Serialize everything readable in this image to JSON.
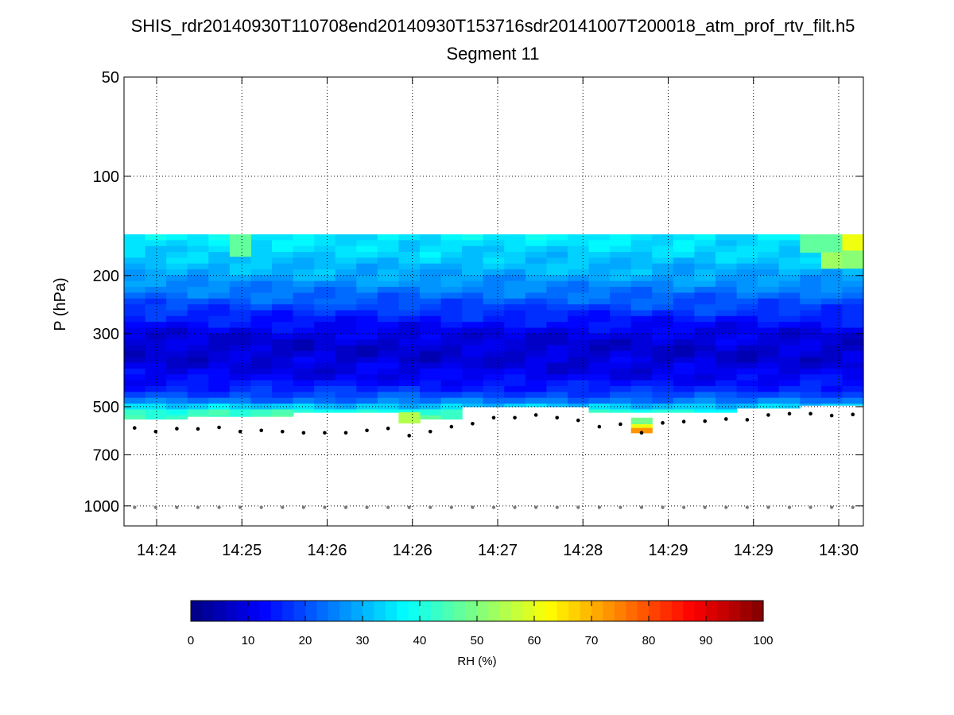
{
  "chart_data": {
    "type": "heatmap",
    "title": "SHIS_rdr20140930T110708end20140930T153716sdr20141007T200018_atm_prof_rtv_filt.h5",
    "subtitle": "Segment 11",
    "ylabel": "P (hPa)",
    "xlabel": "",
    "y_scale": "log",
    "y_inverted": true,
    "ylim": [
      50,
      1150
    ],
    "y_ticks": [
      50,
      100,
      200,
      300,
      500,
      700,
      1000
    ],
    "y_tick_labels": [
      "50",
      "100",
      "200",
      "300",
      "500",
      "700",
      "1000"
    ],
    "x_tick_labels": [
      "14:24",
      "14:25",
      "14:26",
      "14:26",
      "14:27",
      "14:28",
      "14:29",
      "14:29",
      "14:30"
    ],
    "grid": true,
    "colormap": "jet",
    "colorbar": {
      "label": "RH (%)",
      "range": [
        0,
        100
      ],
      "ticks": [
        0,
        10,
        20,
        30,
        40,
        50,
        60,
        70,
        80,
        90,
        100
      ],
      "tick_labels": [
        "0",
        "10",
        "20",
        "30",
        "40",
        "50",
        "60",
        "70",
        "80",
        "90",
        "100"
      ],
      "levels": 50
    },
    "columns": 35,
    "rh_top_pressure": 150,
    "surface_pressure": [
      580,
      595,
      583,
      584,
      578,
      595,
      590,
      595,
      600,
      600,
      600,
      590,
      582,
      612,
      595,
      575,
      563,
      540,
      540,
      530,
      540,
      550,
      575,
      565,
      600,
      560,
      555,
      553,
      545,
      548,
      530,
      525,
      525,
      532,
      528
    ],
    "lowest_pressure": [
      545,
      545,
      545,
      535,
      535,
      535,
      535,
      535,
      520,
      520,
      520,
      520,
      520,
      560,
      545,
      545,
      500,
      500,
      500,
      500,
      500,
      500,
      520,
      520,
      520,
      520,
      520,
      520,
      520,
      505,
      505,
      505,
      495,
      495,
      495
    ],
    "surface_marker_pressure": 1010,
    "rh_profile": {
      "pressure": [
        150,
        165,
        185,
        200,
        220,
        245,
        270,
        300,
        335,
        370,
        410,
        450,
        480,
        500,
        520,
        545,
        560,
        590
      ],
      "rh": [
        36,
        34,
        31,
        29,
        25,
        20,
        15,
        10,
        8,
        9,
        12,
        17,
        24,
        33,
        42,
        46,
        55,
        73
      ]
    },
    "anomalies": [
      {
        "column": 5,
        "pmin": 150,
        "pmax": 175,
        "rh": 46
      },
      {
        "column": 13,
        "pmin": 520,
        "pmax": 560,
        "rh": 55
      },
      {
        "column": 24,
        "pmin": 540,
        "pmax": 565,
        "rh": 48
      },
      {
        "column": 24,
        "pmin": 565,
        "pmax": 580,
        "rh": 60
      },
      {
        "column": 24,
        "pmin": 580,
        "pmax": 600,
        "rh": 73
      },
      {
        "column": 32,
        "pmin": 150,
        "pmax": 170,
        "rh": 46
      },
      {
        "column": 33,
        "pmin": 150,
        "pmax": 170,
        "rh": 46
      },
      {
        "column": 33,
        "pmin": 170,
        "pmax": 190,
        "rh": 52
      },
      {
        "column": 34,
        "pmin": 150,
        "pmax": 168,
        "rh": 60
      },
      {
        "column": 34,
        "pmin": 168,
        "pmax": 190,
        "rh": 50
      }
    ]
  }
}
